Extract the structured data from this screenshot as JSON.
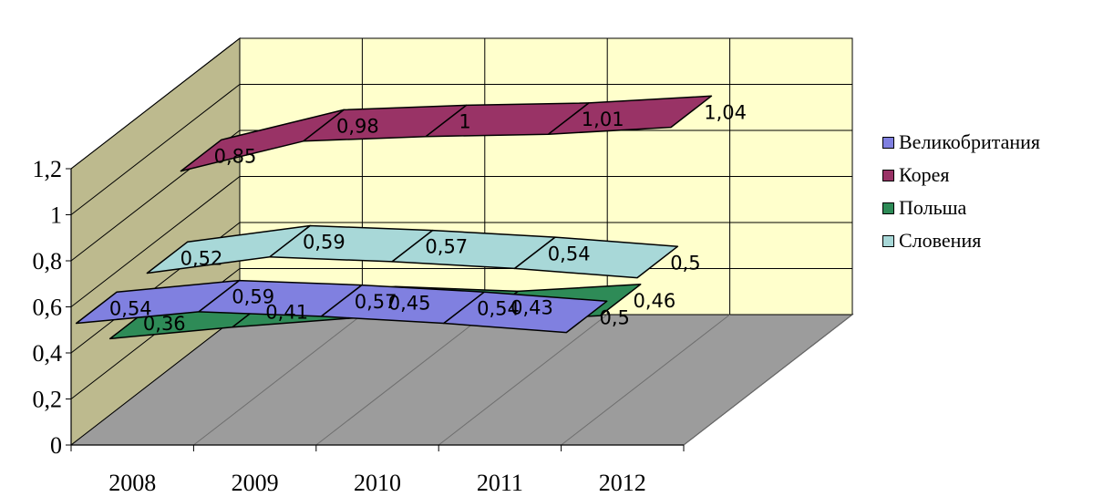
{
  "chart_data": {
    "type": "line",
    "style": "3d-ribbon",
    "categories": [
      "2008",
      "2009",
      "2010",
      "2011",
      "2012"
    ],
    "ylim": [
      0,
      1.2
    ],
    "yticks": [
      "0",
      "0,2",
      "0,4",
      "0,6",
      "0,8",
      "1",
      "1,2"
    ],
    "grid": true,
    "legend_position": "right",
    "colors": {
      "back_wall": "#FFFFCC",
      "side_wall": "#BDBA8E",
      "floor": "#9C9C9C",
      "grid": "#000000"
    },
    "series": [
      {
        "name": "Великобритания",
        "color": "#8080E0",
        "values": [
          0.54,
          0.59,
          0.57,
          0.54,
          0.5
        ],
        "labels": [
          "0,54",
          "0,59",
          "0,57",
          "0,54",
          "0,5"
        ]
      },
      {
        "name": "Корея",
        "color": "#993366",
        "values": [
          0.85,
          0.98,
          1,
          1.01,
          1.04
        ],
        "labels": [
          "0,85",
          "0,98",
          "1",
          "1,01",
          "1,04"
        ]
      },
      {
        "name": "Польша",
        "color": "#2E8B57",
        "values": [
          0.36,
          0.41,
          0.45,
          0.43,
          0.46
        ],
        "labels": [
          "0,36",
          "0,41",
          "0,45",
          "0,43",
          "0,46"
        ]
      },
      {
        "name": "Словения",
        "color": "#A8D8D8",
        "values": [
          0.52,
          0.59,
          0.57,
          0.54,
          0.5
        ],
        "labels": [
          "0,52",
          "0,59",
          "0,57",
          "0,54",
          "0,5"
        ]
      }
    ]
  }
}
